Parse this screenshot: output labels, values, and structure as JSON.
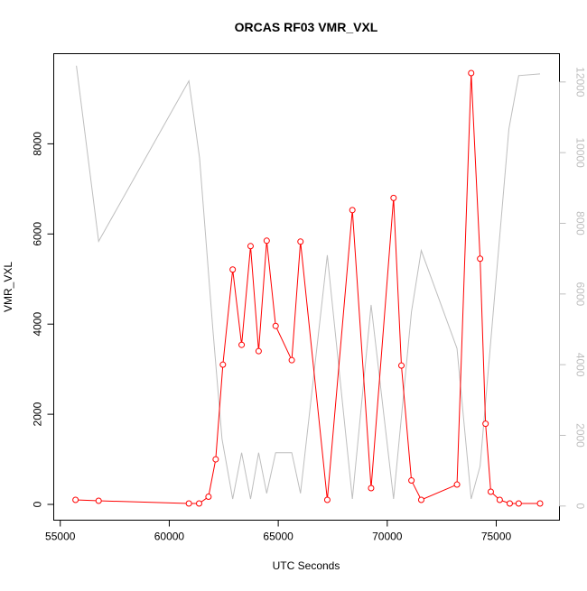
{
  "chart_data": {
    "type": "line",
    "title": "ORCAS RF03 VMR_VXL",
    "xlabel": "UTC Seconds",
    "ylabel": "VMR_VXL",
    "xlim": [
      54700,
      77900
    ],
    "ylim": [
      -350,
      10000
    ],
    "y2lim": [
      -400,
      12800
    ],
    "xticks": [
      55000,
      60000,
      65000,
      70000,
      75000
    ],
    "yticks": [
      0,
      2000,
      4000,
      6000,
      8000
    ],
    "y2ticks": [
      0,
      2000,
      4000,
      6000,
      8000,
      10000,
      12000
    ],
    "grid": false,
    "series": [
      {
        "axis": "left",
        "color": "#ff0000",
        "style": "line-with-open-circles",
        "x": [
          55700,
          56760,
          60900,
          61370,
          61800,
          62130,
          62460,
          62910,
          63320,
          63730,
          64100,
          64470,
          64880,
          65620,
          66020,
          67250,
          68400,
          69260,
          70290,
          70650,
          71110,
          71560,
          73200,
          73850,
          74260,
          74510,
          74750,
          75160,
          75620,
          76030,
          77010
        ],
        "y": [
          100,
          80,
          20,
          20,
          170,
          1000,
          3100,
          5210,
          3540,
          5730,
          3400,
          5850,
          3960,
          3200,
          5830,
          100,
          6530,
          360,
          6800,
          3080,
          530,
          100,
          440,
          9570,
          5450,
          1790,
          280,
          100,
          20,
          20,
          20
        ]
      },
      {
        "axis": "right",
        "color": "#bebebe",
        "style": "line",
        "x": [
          55740,
          56760,
          60900,
          61390,
          62000,
          62420,
          62910,
          63320,
          63730,
          64100,
          64470,
          64880,
          65620,
          66020,
          67250,
          68400,
          69260,
          70290,
          71110,
          71560,
          73200,
          73850,
          74260,
          75580,
          76030,
          77010
        ],
        "y": [
          12460,
          7490,
          12030,
          9850,
          5000,
          1900,
          200,
          1510,
          200,
          1510,
          360,
          1510,
          1510,
          360,
          7100,
          200,
          5690,
          200,
          5490,
          7230,
          4460,
          200,
          1130,
          10670,
          12180,
          12230
        ]
      }
    ]
  }
}
